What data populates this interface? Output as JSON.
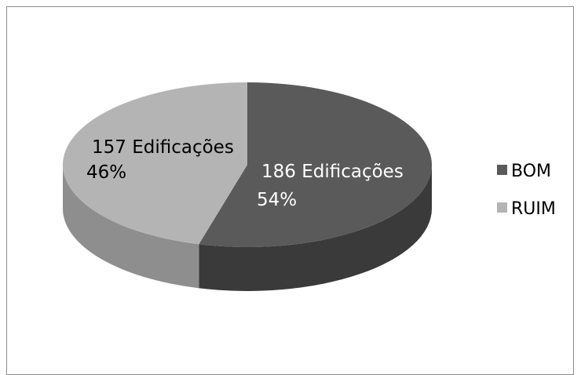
{
  "chart_data": {
    "type": "pie",
    "style": "3d-exploded-none",
    "categories": [
      "BOM",
      "RUIM"
    ],
    "values": [
      186,
      157
    ],
    "percentages": [
      "54%",
      "46%"
    ],
    "value_labels": [
      "186 Edificações",
      "157 Edificações"
    ],
    "legend": {
      "placement": "right",
      "entries": [
        "BOM",
        "RUIM"
      ]
    },
    "colors": {
      "BOM_top": "#5a5a5a",
      "BOM_side": "#3a3a3a",
      "RUIM_top": "#b4b4b4",
      "RUIM_side": "#8e8e8e",
      "label_bom": "#ffffff",
      "label_ruim": "#000000"
    }
  }
}
